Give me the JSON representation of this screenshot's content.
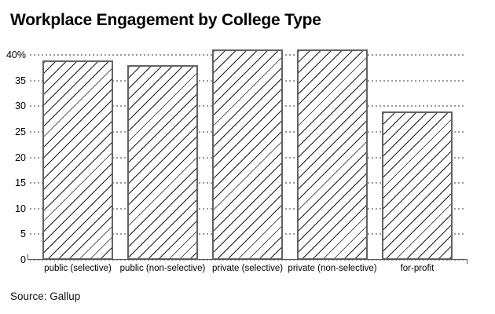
{
  "title": "Workplace Engagement by College Type",
  "source": "Source: Gallup",
  "colors": {
    "background": "#ffffff",
    "bar_fill": "#ffffff",
    "bar_border": "#636363",
    "hatch": "#1a1a1a",
    "gridline": "#9a9a9a",
    "axis": "#555555",
    "text": "#000000"
  },
  "chart_data": {
    "type": "bar",
    "title": "Workplace Engagement by College Type",
    "categories": [
      "public (selective)",
      "public (non-selective)",
      "private (selective)",
      "private (non-selective)",
      "for-profit"
    ],
    "values": [
      39,
      38,
      41,
      41,
      29
    ],
    "unit": "%",
    "xlabel": "",
    "ylabel": "",
    "ylim": [
      0,
      42
    ],
    "y_ticks": [
      0,
      5,
      10,
      15,
      20,
      25,
      30,
      35,
      40
    ],
    "y_tick_labels": [
      "0",
      "5",
      "10",
      "15",
      "20",
      "25",
      "30",
      "35",
      "40%"
    ],
    "grid": "horizontal dotted",
    "legend": "none",
    "bar_style": "white fill with black diagonal hatch, gray outline",
    "source": "Gallup"
  }
}
